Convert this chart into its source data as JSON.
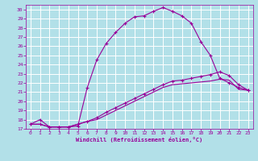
{
  "xlabel": "Windchill (Refroidissement éolien,°C)",
  "bg_color": "#b2e0e8",
  "grid_color": "#ffffff",
  "line_color": "#990099",
  "xlim": [
    -0.5,
    23.5
  ],
  "ylim": [
    17,
    30.5
  ],
  "yticks": [
    17,
    18,
    19,
    20,
    21,
    22,
    23,
    24,
    25,
    26,
    27,
    28,
    29,
    30
  ],
  "xticks": [
    0,
    1,
    2,
    3,
    4,
    5,
    6,
    7,
    8,
    9,
    10,
    11,
    12,
    13,
    14,
    15,
    16,
    17,
    18,
    19,
    20,
    21,
    22,
    23
  ],
  "line1_x": [
    0,
    1,
    2,
    3,
    4,
    5,
    6,
    7,
    8,
    9,
    10,
    11,
    12,
    13,
    14,
    15,
    16,
    17,
    18,
    19,
    20,
    21,
    22,
    23
  ],
  "line1_y": [
    17.5,
    18.0,
    17.2,
    17.2,
    17.2,
    17.3,
    21.5,
    24.5,
    26.3,
    27.5,
    28.5,
    29.2,
    29.3,
    29.8,
    30.2,
    29.8,
    29.3,
    28.5,
    26.5,
    25.0,
    22.5,
    22.0,
    21.5,
    21.2
  ],
  "line2_x": [
    0,
    1,
    2,
    3,
    4,
    5,
    6,
    7,
    8,
    9,
    10,
    11,
    12,
    13,
    14,
    15,
    16,
    17,
    18,
    19,
    20,
    21,
    22,
    23
  ],
  "line2_y": [
    17.5,
    17.5,
    17.2,
    17.2,
    17.2,
    17.5,
    17.8,
    18.2,
    18.8,
    19.3,
    19.8,
    20.3,
    20.8,
    21.3,
    21.8,
    22.2,
    22.3,
    22.5,
    22.7,
    22.9,
    23.2,
    22.8,
    21.8,
    21.2
  ],
  "line3_x": [
    0,
    1,
    2,
    3,
    4,
    5,
    6,
    7,
    8,
    9,
    10,
    11,
    12,
    13,
    14,
    15,
    16,
    17,
    18,
    19,
    20,
    21,
    22,
    23
  ],
  "line3_y": [
    17.5,
    17.5,
    17.2,
    17.2,
    17.2,
    17.5,
    17.8,
    18.0,
    18.5,
    19.0,
    19.5,
    20.0,
    20.5,
    21.0,
    21.5,
    21.8,
    21.9,
    22.0,
    22.1,
    22.2,
    22.4,
    22.3,
    21.3,
    21.2
  ]
}
